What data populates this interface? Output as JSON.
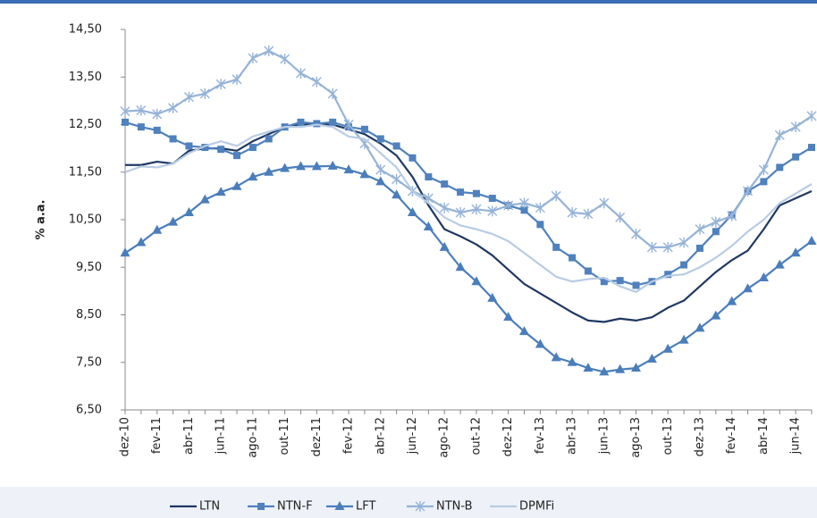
{
  "chart_data": {
    "type": "line",
    "y_label": "% a.a.",
    "categories": [
      "dez-10",
      null,
      "fev-11",
      null,
      "abr-11",
      null,
      "jun-11",
      null,
      "ago-11",
      null,
      "out-11",
      null,
      "dez-11",
      null,
      "fev-12",
      null,
      "abr-12",
      null,
      "jun-12",
      null,
      "ago-12",
      null,
      "out-12",
      null,
      "dez-12",
      null,
      "fev-13",
      null,
      "abr-13",
      null,
      "jun-13",
      null,
      "ago-13",
      null,
      "out-13",
      null,
      "dez-13",
      null,
      "fev-14",
      null,
      "abr-14",
      null,
      "jun-14",
      null
    ],
    "ylim": [
      6.5,
      14.5
    ],
    "yticks": [
      {
        "value": 6.5,
        "label": "6,50"
      },
      {
        "value": 7.5,
        "label": "7,50"
      },
      {
        "value": 8.5,
        "label": "8,50"
      },
      {
        "value": 9.5,
        "label": "9,50"
      },
      {
        "value": 10.5,
        "label": "10,50"
      },
      {
        "value": 11.5,
        "label": "11,50"
      },
      {
        "value": 12.5,
        "label": "12,50"
      },
      {
        "value": 13.5,
        "label": "13,50"
      },
      {
        "value": 14.5,
        "label": "14,50"
      }
    ],
    "grid": false,
    "series": [
      {
        "name": "LTN",
        "color": "#1f3864",
        "marker": "none",
        "values": [
          11.65,
          11.65,
          11.72,
          11.68,
          11.95,
          12.0,
          12.0,
          11.95,
          12.15,
          12.3,
          12.45,
          12.5,
          12.5,
          12.5,
          12.4,
          12.3,
          12.1,
          11.85,
          11.4,
          10.8,
          10.3,
          10.15,
          9.98,
          9.75,
          9.45,
          9.15,
          8.95,
          8.75,
          8.55,
          8.38,
          8.35,
          8.42,
          8.38,
          8.45,
          8.65,
          8.8,
          9.1,
          9.4,
          9.65,
          9.85,
          10.3,
          10.8,
          10.95,
          11.1
        ]
      },
      {
        "name": "NTN-F",
        "color": "#4f81bd",
        "marker": "square",
        "values": [
          12.55,
          12.45,
          12.38,
          12.2,
          12.05,
          12.02,
          11.98,
          11.85,
          12.02,
          12.2,
          12.45,
          12.55,
          12.52,
          12.55,
          12.45,
          12.4,
          12.2,
          12.05,
          11.8,
          11.4,
          11.25,
          11.08,
          11.05,
          10.95,
          10.8,
          10.7,
          10.4,
          9.92,
          9.7,
          9.42,
          9.2,
          9.22,
          9.12,
          9.2,
          9.35,
          9.55,
          9.9,
          10.25,
          10.6,
          11.1,
          11.3,
          11.6,
          11.82,
          12.02
        ]
      },
      {
        "name": "LFT",
        "color": "#4a7ebb",
        "marker": "triangle",
        "values": [
          9.8,
          10.02,
          10.28,
          10.45,
          10.65,
          10.92,
          11.08,
          11.2,
          11.4,
          11.5,
          11.58,
          11.62,
          11.62,
          11.63,
          11.55,
          11.45,
          11.3,
          11.02,
          10.65,
          10.35,
          9.92,
          9.5,
          9.2,
          8.85,
          8.45,
          8.15,
          7.88,
          7.6,
          7.5,
          7.38,
          7.3,
          7.35,
          7.38,
          7.57,
          7.78,
          7.97,
          8.22,
          8.48,
          8.78,
          9.05,
          9.28,
          9.55,
          9.8,
          10.05
        ]
      },
      {
        "name": "NTN-B",
        "color": "#95b3d7",
        "marker": "star",
        "values": [
          12.78,
          12.8,
          12.72,
          12.85,
          13.08,
          13.15,
          13.35,
          13.45,
          13.9,
          14.05,
          13.88,
          13.58,
          13.4,
          13.15,
          12.5,
          12.1,
          11.55,
          11.35,
          11.1,
          10.95,
          10.75,
          10.65,
          10.72,
          10.68,
          10.8,
          10.85,
          10.75,
          11.0,
          10.65,
          10.62,
          10.85,
          10.55,
          10.2,
          9.92,
          9.92,
          10.02,
          10.3,
          10.45,
          10.58,
          11.1,
          11.55,
          12.28,
          12.45,
          12.68
        ]
      },
      {
        "name": "DPMFi",
        "color": "#b8cce4",
        "marker": "none",
        "values": [
          11.5,
          11.62,
          11.6,
          11.68,
          11.9,
          12.05,
          12.15,
          12.05,
          12.25,
          12.35,
          12.45,
          12.45,
          12.5,
          12.45,
          12.25,
          12.2,
          11.9,
          11.6,
          11.1,
          10.85,
          10.55,
          10.38,
          10.3,
          10.2,
          10.05,
          9.8,
          9.55,
          9.3,
          9.2,
          9.25,
          9.28,
          9.1,
          8.98,
          9.2,
          9.32,
          9.35,
          9.5,
          9.7,
          9.95,
          10.25,
          10.5,
          10.85,
          11.05,
          11.25
        ]
      }
    ]
  }
}
